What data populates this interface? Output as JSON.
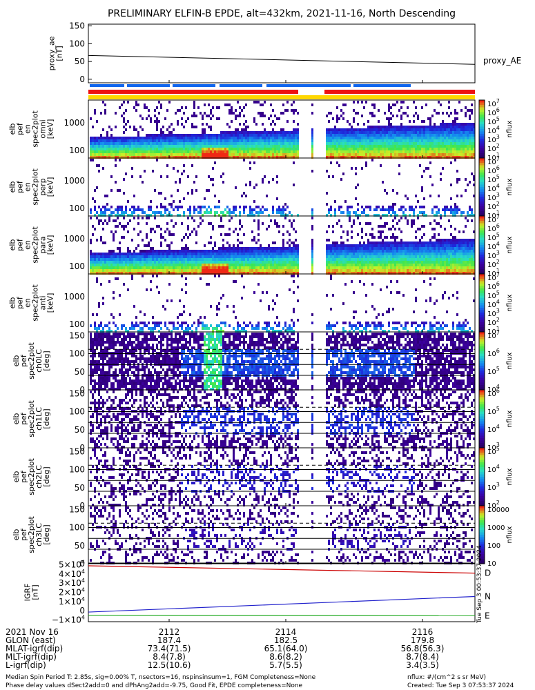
{
  "chart_data": {
    "type": "heatmap",
    "title": "PRELIMINARY ELFIN-B EPDE, alt=432km, 2021-11-16, North Descending",
    "time_ticks": [
      "2112",
      "2114",
      "2116"
    ],
    "colors": {
      "red": "#ee1111",
      "blue": "#1166ee",
      "yellow": "#ffd700",
      "green": "#22cc22"
    },
    "proxy_ae": {
      "ylabel": "proxy_ae\n[nT]",
      "legend": "proxy_AE",
      "yticks": [
        "150",
        "100",
        "50",
        "0"
      ],
      "ylim": [
        -10,
        155
      ],
      "start": 67,
      "end": 42
    },
    "spectro_panels": [
      {
        "ylabel": [
          "elb",
          "pef",
          "en",
          "spec2plot",
          "omni",
          "[keV]"
        ],
        "yticks": [
          "1000",
          "100"
        ],
        "colorbar": {
          "label": "nflux",
          "ticks": [
            "10^7",
            "10^6",
            "10^5",
            "10^4",
            "10^3",
            "10^2",
            "10^1"
          ]
        }
      },
      {
        "ylabel": [
          "elb",
          "pef",
          "en",
          "spec2plot",
          "perp",
          "[keV]"
        ],
        "yticks": [
          "1000",
          "100"
        ],
        "colorbar": {
          "label": "nflux",
          "ticks": [
            "10^7",
            "10^6",
            "10^5",
            "10^4",
            "10^3",
            "10^2",
            "10^1"
          ]
        }
      },
      {
        "ylabel": [
          "elb",
          "pef",
          "en",
          "spec2plot",
          "para",
          "[keV]"
        ],
        "yticks": [
          "1000",
          "100"
        ],
        "colorbar": {
          "label": "nflux",
          "ticks": [
            "10^7",
            "10^6",
            "10^5",
            "10^4",
            "10^3",
            "10^2",
            "10^1"
          ]
        }
      },
      {
        "ylabel": [
          "elb",
          "pef",
          "en",
          "spec2plot",
          "anti",
          "[keV]"
        ],
        "yticks": [
          "1000",
          "100"
        ],
        "colorbar": {
          "label": "nflux",
          "ticks": [
            "10^7",
            "10^6",
            "10^5",
            "10^4",
            "10^3",
            "10^2",
            "10^1"
          ]
        }
      },
      {
        "ylabel": [
          "elb",
          "pef",
          "spec2plot",
          "ch0LC",
          "[deg]"
        ],
        "yticks": [
          "150",
          "100",
          "50",
          "0"
        ],
        "colorbar": {
          "label": "nflux",
          "ticks": [
            "10^7",
            "10^6",
            "10^5",
            "10^4"
          ]
        }
      },
      {
        "ylabel": [
          "elb",
          "pef",
          "spec2plot",
          "ch1LC",
          "[deg]"
        ],
        "yticks": [
          "150",
          "100",
          "50",
          "0"
        ],
        "colorbar": {
          "label": "nflux",
          "ticks": [
            "10^6",
            "10^5",
            "10^4",
            "10^3"
          ]
        }
      },
      {
        "ylabel": [
          "elb",
          "pef",
          "spec2plot",
          "ch2LC",
          "[deg]"
        ],
        "yticks": [
          "150",
          "100",
          "50",
          "0"
        ],
        "colorbar": {
          "label": "nflux",
          "ticks": [
            "10^5",
            "10^4",
            "10^3",
            "10^2"
          ]
        }
      },
      {
        "ylabel": [
          "elb",
          "pef",
          "spec2plot",
          "ch3LC",
          "[deg]"
        ],
        "yticks": [
          "150",
          "100",
          "50",
          "0"
        ],
        "colorbar": {
          "label": "nflux",
          "ticks": [
            "10000",
            "1000",
            "100",
            "10"
          ]
        }
      }
    ],
    "igrf": {
      "ylabel": "IGRF\n[nT]",
      "yticks": [
        "5×10^4",
        "4×10^4",
        "3×10^4",
        "2×10^4",
        "1×10^4",
        "0",
        "−1×10^4"
      ],
      "ylim": [
        -12000,
        52000
      ],
      "series": [
        {
          "name": "D",
          "color": "#cc0000",
          "start": 49000,
          "end": 41000
        },
        {
          "name": "N",
          "color": "#2222cc",
          "start": -1500,
          "end": 15500
        },
        {
          "name": "E",
          "color": "#22aa22",
          "start": -5000,
          "end": -5500
        }
      ]
    },
    "ephemeris": {
      "row_labels": [
        "2021 Nov 16",
        "GLON (east)",
        "MLAT-igrf(dip)",
        "MLT-igrf(dip)",
        "L-igrf(dip)"
      ],
      "columns": [
        [
          "2112",
          "187.4",
          "73.4(71.5)",
          "8.4(7.8)",
          "12.5(10.6)"
        ],
        [
          "2114",
          "182.5",
          "65.1(64.0)",
          "8.6(8.2)",
          "5.7(5.5)"
        ],
        [
          "2116",
          "179.8",
          "56.8(56.3)",
          "8.7(8.4)",
          "3.4(3.5)"
        ]
      ]
    },
    "footer_left": [
      "Median Spin Period T: 2.85s, sig=0.00% T, nsectors=16, nspinsinsum=1, FGM Completeness=None",
      "Phase delay values dSect2add=0 and dPhAng2add=-9.75, Good Fit, EPDE completeness=None"
    ],
    "footer_right": [
      "nflux: #/(cm^2 s sr MeV)",
      "Created: Tue Sep  3 07:53:37 2024"
    ],
    "side_stamp": "Tue Sep  3 00:53:37 2024"
  }
}
